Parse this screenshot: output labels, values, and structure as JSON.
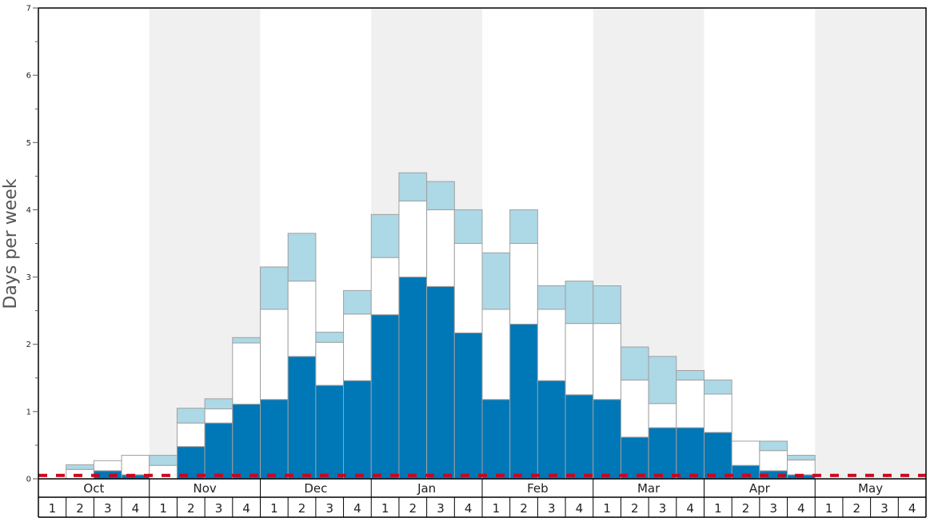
{
  "chart_data": {
    "type": "bar",
    "stacked": true,
    "ylabel": "Days per week",
    "ylim": [
      0,
      7
    ],
    "yticks": [
      0,
      1,
      2,
      3,
      4,
      5,
      6,
      7
    ],
    "months": [
      "Oct",
      "Nov",
      "Dec",
      "Jan",
      "Feb",
      "Mar",
      "Apr",
      "May"
    ],
    "weeks": [
      "1",
      "2",
      "3",
      "4"
    ],
    "shaded_months": [
      "Nov",
      "Jan",
      "Mar",
      "May"
    ],
    "reference_line": {
      "value": 0.05,
      "style": "dashed",
      "color": "#d0021b"
    },
    "colors": {
      "series_1": "#0077b6",
      "series_2": "#ffffff",
      "series_3": "#add8e6",
      "band": "#f0f0f0",
      "bar_stroke": "#a0a0a0"
    },
    "categories": [
      "Oct 1",
      "Oct 2",
      "Oct 3",
      "Oct 4",
      "Nov 1",
      "Nov 2",
      "Nov 3",
      "Nov 4",
      "Dec 1",
      "Dec 2",
      "Dec 3",
      "Dec 4",
      "Jan 1",
      "Jan 2",
      "Jan 3",
      "Jan 4",
      "Feb 1",
      "Feb 2",
      "Feb 3",
      "Feb 4",
      "Mar 1",
      "Mar 2",
      "Mar 3",
      "Mar 4",
      "Apr 1",
      "Apr 2",
      "Apr 3",
      "Apr 4",
      "May 1",
      "May 2",
      "May 3",
      "May 4"
    ],
    "series": [
      {
        "key": "series_1",
        "values": [
          0,
          0,
          0.12,
          0.06,
          0,
          0.48,
          0.83,
          1.11,
          1.18,
          1.82,
          1.39,
          1.46,
          2.44,
          3.0,
          2.86,
          2.17,
          1.18,
          2.3,
          1.46,
          1.25,
          1.18,
          0.62,
          0.76,
          0.76,
          0.69,
          0.2,
          0.12,
          0.06,
          0,
          0,
          0,
          0
        ]
      },
      {
        "key": "series_2",
        "values": [
          0,
          0.14,
          0.15,
          0.29,
          0.2,
          0.35,
          0.21,
          0.91,
          1.34,
          1.12,
          0.64,
          0.99,
          0.85,
          1.13,
          1.14,
          1.33,
          1.34,
          1.2,
          1.06,
          1.06,
          1.13,
          0.85,
          0.36,
          0.71,
          0.57,
          0.36,
          0.3,
          0.22,
          0,
          0,
          0,
          0
        ]
      },
      {
        "key": "series_3",
        "values": [
          0,
          0.07,
          0,
          0,
          0.15,
          0.22,
          0.15,
          0.08,
          0.63,
          0.71,
          0.15,
          0.35,
          0.64,
          0.42,
          0.42,
          0.5,
          0.84,
          0.5,
          0.35,
          0.63,
          0.56,
          0.49,
          0.7,
          0.14,
          0.21,
          0,
          0.14,
          0.07,
          0,
          0,
          0,
          0
        ]
      }
    ]
  }
}
